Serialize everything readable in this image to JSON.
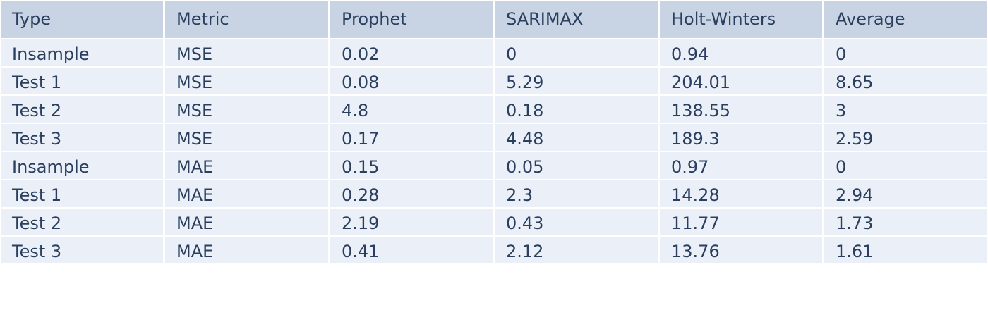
{
  "chart_data": {
    "type": "table",
    "columns": [
      "Type",
      "Metric",
      "Prophet",
      "SARIMAX",
      "Holt-Winters",
      "Average"
    ],
    "rows": [
      [
        "Insample",
        "MSE",
        "0.02",
        "0",
        "0.94",
        "0"
      ],
      [
        "Test 1",
        "MSE",
        "0.08",
        "5.29",
        "204.01",
        "8.65"
      ],
      [
        "Test 2",
        "MSE",
        "4.8",
        "0.18",
        "138.55",
        "3"
      ],
      [
        "Test 3",
        "MSE",
        "0.17",
        "4.48",
        "189.3",
        "2.59"
      ],
      [
        "Insample",
        "MAE",
        "0.15",
        "0.05",
        "0.97",
        "0"
      ],
      [
        "Test 1",
        "MAE",
        "0.28",
        "2.3",
        "14.28",
        "2.94"
      ],
      [
        "Test 2",
        "MAE",
        "2.19",
        "0.43",
        "11.77",
        "1.73"
      ],
      [
        "Test 3",
        "MAE",
        "0.41",
        "2.12",
        "13.76",
        "1.61"
      ]
    ]
  },
  "colors": {
    "header_fill": "#c8d4e3",
    "cell_fill": "#ebf0f8",
    "text": "#2a3f5f",
    "line": "#ffffff"
  }
}
